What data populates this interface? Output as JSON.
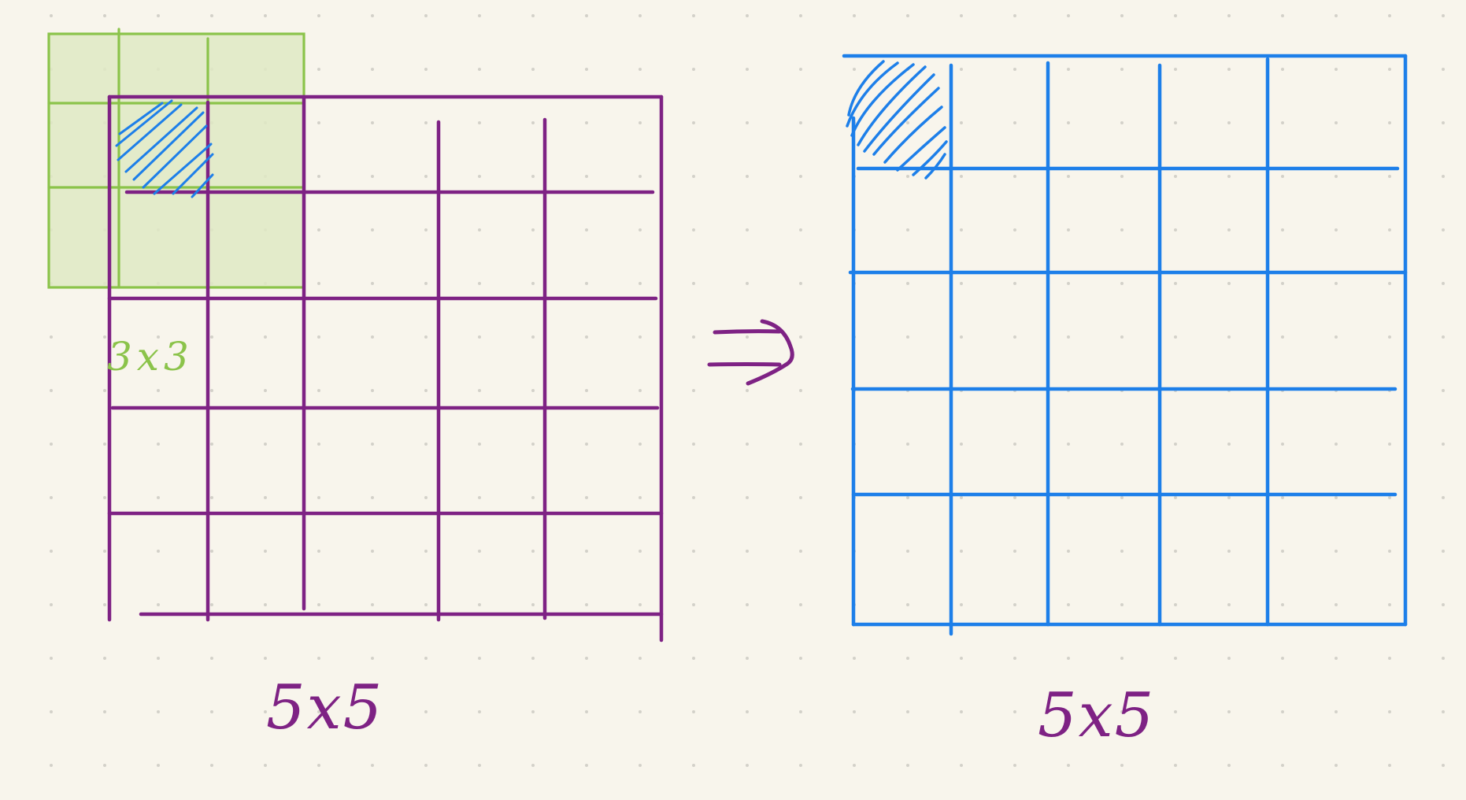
{
  "colors": {
    "background": "#f8f5ec",
    "dots": "#d3d1c9",
    "input_grid": "#7e2284",
    "kernel": "#8bc34a",
    "kernel_fill": "#dfe9c4",
    "output_grid": "#1d7fe9",
    "hatch": "#1d7fe9",
    "arrow": "#7e2284"
  },
  "labels": {
    "kernel_size": "3x3",
    "input_size": "5x5",
    "output_size": "5x5"
  },
  "input_grid": {
    "rows": 5,
    "cols": 5
  },
  "kernel": {
    "rows": 3,
    "cols": 3
  },
  "output_grid": {
    "rows": 5,
    "cols": 5
  }
}
